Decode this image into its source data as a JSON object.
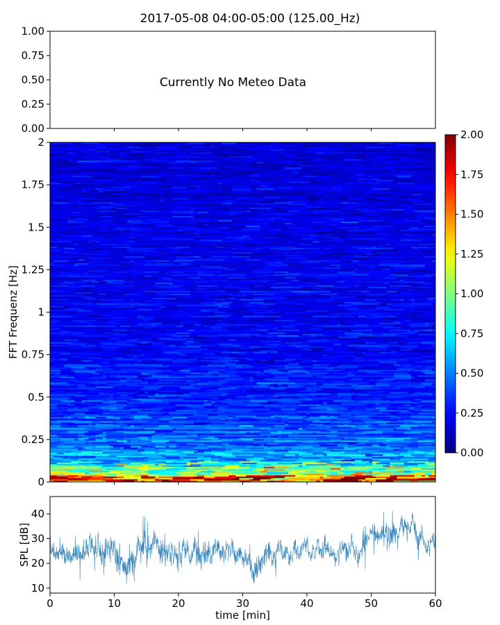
{
  "figure": {
    "title": "2017-05-08 04:00-05:00 (125.00_Hz)"
  },
  "chart_data": [
    {
      "type": "line",
      "panel": "meteo",
      "annotation": "Currently No Meteo Data",
      "ylim": [
        0,
        1
      ],
      "yticks": [
        "0.00",
        "0.25",
        "0.50",
        "0.75",
        "1.00"
      ],
      "xlim": [
        0,
        60
      ],
      "series": []
    },
    {
      "type": "heatmap",
      "panel": "spectrogram",
      "ylabel": "FFT Frequenz [Hz]",
      "xlim": [
        0,
        60
      ],
      "ylim": [
        0,
        2
      ],
      "yticks": [
        "0",
        "0.25",
        "0.5",
        "0.75",
        "1",
        "1.25",
        "1.5",
        "1.75",
        "2"
      ],
      "colormap": "jet",
      "color_range": [
        0,
        2
      ],
      "colorbar_ticks": [
        "0.00",
        "0.25",
        "0.50",
        "0.75",
        "1.00",
        "1.25",
        "1.50",
        "1.75",
        "2.00"
      ],
      "intensity_profile": [
        {
          "freq": 0.0,
          "value": 1.6
        },
        {
          "freq": 0.05,
          "value": 1.0
        },
        {
          "freq": 0.1,
          "value": 0.7
        },
        {
          "freq": 0.25,
          "value": 0.45
        },
        {
          "freq": 0.5,
          "value": 0.3
        },
        {
          "freq": 1.0,
          "value": 0.22
        },
        {
          "freq": 2.0,
          "value": 0.18
        }
      ]
    },
    {
      "type": "line",
      "panel": "spl",
      "ylabel": "SPL [dB]",
      "xlabel": "time [min]",
      "xlim": [
        0,
        60
      ],
      "ylim": [
        8,
        47
      ],
      "xticks": [
        "0",
        "10",
        "20",
        "30",
        "40",
        "50",
        "60"
      ],
      "yticks": [
        "10",
        "20",
        "30",
        "40"
      ],
      "color": "#1f77b4",
      "series": [
        {
          "x": [
            0,
            2,
            4,
            6,
            8,
            10,
            12,
            14,
            16,
            18,
            20,
            22,
            24,
            26,
            28,
            30,
            32,
            34,
            36,
            38,
            40,
            42,
            44,
            46,
            48,
            50,
            52,
            54,
            56,
            58,
            60
          ],
          "values": [
            24,
            23,
            22,
            27,
            24,
            26,
            20,
            26,
            29,
            25,
            24,
            26,
            23,
            24,
            26,
            22,
            16,
            22,
            26,
            25,
            25,
            27,
            24,
            25,
            24,
            33,
            31,
            33,
            34,
            29,
            28
          ],
          "spread": [
            4,
            4,
            4,
            4,
            5,
            5,
            5,
            4,
            4,
            4,
            4,
            4,
            4,
            4,
            4,
            4,
            5,
            4,
            3,
            3,
            3,
            3,
            3,
            3,
            3,
            4,
            4,
            4,
            4,
            3,
            3
          ]
        }
      ]
    }
  ]
}
